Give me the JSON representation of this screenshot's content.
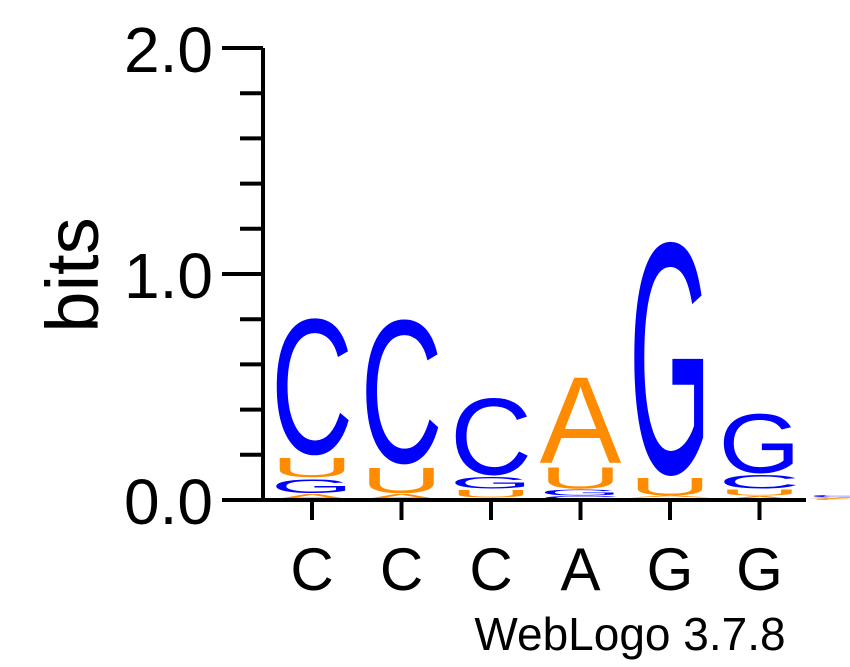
{
  "chart_data": {
    "type": "sequence-logo",
    "ylabel": "bits",
    "ylim": [
      0,
      2.0
    ],
    "yticks": [
      {
        "value": 0.0,
        "label": "0.0"
      },
      {
        "value": 1.0,
        "label": "1.0"
      },
      {
        "value": 2.0,
        "label": "2.0"
      }
    ],
    "yminor_step": 0.2,
    "colors": {
      "A": "#ff8c00",
      "C": "#0000ff",
      "G": "#0000ff",
      "U": "#ff8c00"
    },
    "positions": [
      {
        "label": "C",
        "stack": [
          {
            "base": "A",
            "bits": 0.03
          },
          {
            "base": "G",
            "bits": 0.07
          },
          {
            "base": "U",
            "bits": 0.1
          },
          {
            "base": "C",
            "bits": 0.69
          }
        ]
      },
      {
        "label": "C",
        "stack": [
          {
            "base": "A",
            "bits": 0.03
          },
          {
            "base": "U",
            "bits": 0.13
          },
          {
            "base": "C",
            "bits": 0.73
          }
        ]
      },
      {
        "label": "C",
        "stack": [
          {
            "base": "A",
            "bits": 0.01
          },
          {
            "base": "U",
            "bits": 0.04
          },
          {
            "base": "G",
            "bits": 0.06
          },
          {
            "base": "C",
            "bits": 0.39
          }
        ]
      },
      {
        "label": "A",
        "stack": [
          {
            "base": "C",
            "bits": 0.02
          },
          {
            "base": "G",
            "bits": 0.03
          },
          {
            "base": "U",
            "bits": 0.11
          },
          {
            "base": "A",
            "bits": 0.44
          }
        ]
      },
      {
        "label": "G",
        "stack": [
          {
            "base": "C",
            "bits": 0.01
          },
          {
            "base": "A",
            "bits": 0.01
          },
          {
            "base": "U",
            "bits": 0.09
          },
          {
            "base": "G",
            "bits": 1.18
          }
        ]
      },
      {
        "label": "G",
        "stack": [
          {
            "base": "A",
            "bits": 0.02
          },
          {
            "base": "U",
            "bits": 0.03
          },
          {
            "base": "C",
            "bits": 0.07
          },
          {
            "base": "G",
            "bits": 0.3
          }
        ]
      },
      {
        "label": "",
        "stack": [
          {
            "base": "U",
            "bits": 0.005
          },
          {
            "base": "A",
            "bits": 0.005
          },
          {
            "base": "G",
            "bits": 0.006
          },
          {
            "base": "C",
            "bits": 0.006
          }
        ]
      }
    ]
  },
  "footer": {
    "credit": "WebLogo 3.7.8"
  }
}
